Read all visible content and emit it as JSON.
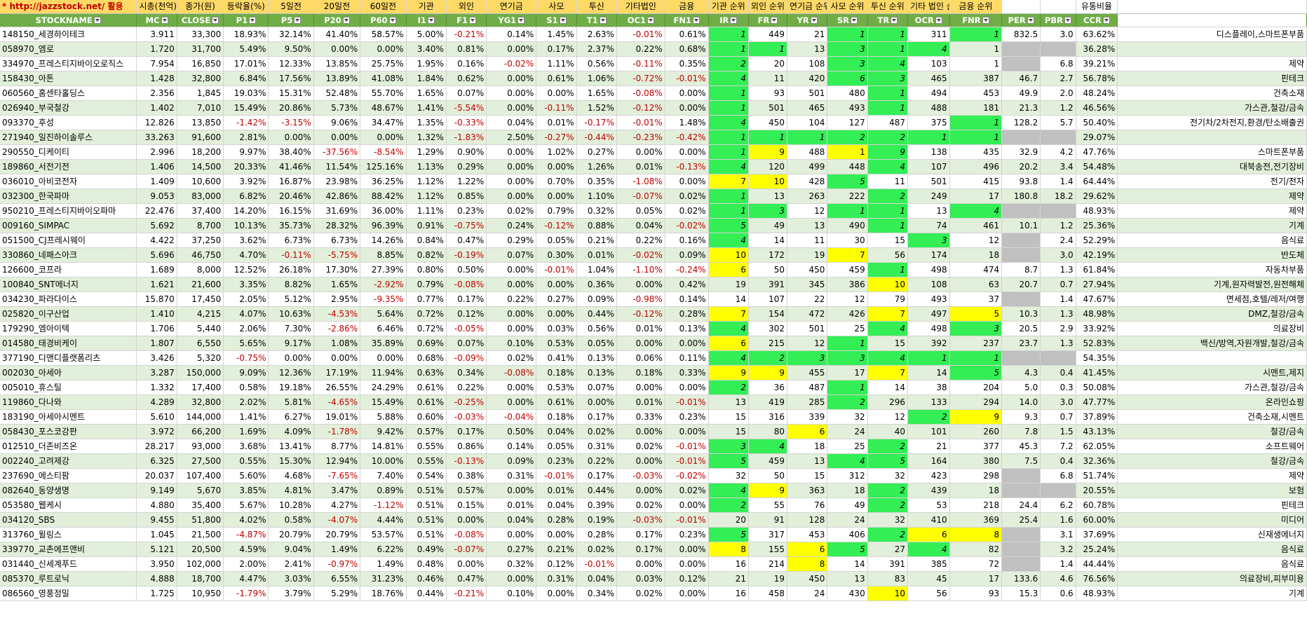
{
  "title_row": [
    "* http://jazzstock.net/ 활용",
    "시총(천억)",
    "종가(원)",
    "등락율(%)",
    "5일전",
    "20일전",
    "60일전",
    "기관",
    "외인",
    "연기금",
    "사모",
    "투신",
    "기타법인",
    "금융",
    "기관 순위",
    "외인 순위",
    "연기금 순위",
    "사모 순위",
    "투신 순위",
    "기타 법인 순위",
    "금융 순위",
    "",
    "",
    "유통비율",
    ""
  ],
  "headers": [
    "STOCKNAME",
    "MC",
    "CLOSE",
    "P1",
    "P5",
    "P20",
    "P60",
    "I1",
    "F1",
    "YG1",
    "S1",
    "T1",
    "OC1",
    "FN1",
    "IR",
    "FR",
    "YR",
    "SR",
    "TR",
    "OCR",
    "FNR",
    "PER",
    "PBR",
    "CCR",
    ""
  ],
  "rows": [
    [
      "148150_세경하이테크",
      "3.911",
      "33,300",
      "18.93%",
      "32.14%",
      "41.40%",
      "58.57%",
      "5.00%",
      "-0.21%",
      "0.14%",
      "1.45%",
      "2.63%",
      "-0.01%",
      "0.61%",
      "1",
      "449",
      "21",
      "1",
      "1",
      "311",
      "1",
      "832.5",
      "3.0",
      "63.62%",
      "디스플레이,스마트폰부품"
    ],
    [
      "058970_엠로",
      "1.720",
      "31,700",
      "5.49%",
      "9.50%",
      "0.00%",
      "0.00%",
      "3.40%",
      "0.81%",
      "0.00%",
      "0.17%",
      "2.37%",
      "0.22%",
      "0.68%",
      "1",
      "1",
      "13",
      "3",
      "1",
      "4",
      "1",
      "",
      "",
      "36.28%",
      ""
    ],
    [
      "334970_프레스티지바이오로직스",
      "7.954",
      "16,850",
      "17.01%",
      "12.33%",
      "13.85%",
      "25.75%",
      "1.95%",
      "0.16%",
      "-0.02%",
      "1.11%",
      "0.56%",
      "-0.11%",
      "0.35%",
      "2",
      "20",
      "108",
      "3",
      "4",
      "103",
      "1",
      "",
      "6.8",
      "39.21%",
      "제약"
    ],
    [
      "158430_아톤",
      "1.428",
      "32,800",
      "6.84%",
      "17.56%",
      "13.89%",
      "41.08%",
      "1.84%",
      "0.62%",
      "0.00%",
      "0.61%",
      "1.06%",
      "-0.72%",
      "-0.01%",
      "4",
      "11",
      "420",
      "6",
      "3",
      "465",
      "387",
      "46.7",
      "2.7",
      "56.78%",
      "핀테크"
    ],
    [
      "060560_홈센타홀딩스",
      "2.356",
      "1,845",
      "19.03%",
      "15.31%",
      "52.48%",
      "55.70%",
      "1.65%",
      "0.07%",
      "0.00%",
      "0.00%",
      "1.65%",
      "-0.08%",
      "0.00%",
      "1",
      "93",
      "501",
      "480",
      "1",
      "494",
      "453",
      "49.9",
      "2.0",
      "48.24%",
      "건축소재"
    ],
    [
      "026940_부국철강",
      "1.402",
      "7,010",
      "15.49%",
      "20.86%",
      "5.73%",
      "48.67%",
      "1.41%",
      "-5.54%",
      "0.00%",
      "-0.11%",
      "1.52%",
      "-0.12%",
      "0.00%",
      "1",
      "501",
      "465",
      "493",
      "1",
      "488",
      "181",
      "21.3",
      "1.2",
      "46.56%",
      "가스관,철강/금속"
    ],
    [
      "093370_후성",
      "12.826",
      "13,850",
      "-1.42%",
      "-3.15%",
      "9.06%",
      "34.47%",
      "1.35%",
      "-0.33%",
      "0.04%",
      "0.01%",
      "-0.17%",
      "-0.01%",
      "1.48%",
      "4",
      "450",
      "104",
      "127",
      "487",
      "375",
      "1",
      "128.2",
      "5.7",
      "50.40%",
      "전기차/2차전지,환경/탄소배출권"
    ],
    [
      "271940_일진하이솔루스",
      "33.263",
      "91,600",
      "2.81%",
      "0.00%",
      "0.00%",
      "0.00%",
      "1.32%",
      "-1.83%",
      "2.50%",
      "-0.27%",
      "-0.44%",
      "-0.23%",
      "-0.42%",
      "1",
      "1",
      "1",
      "2",
      "2",
      "1",
      "1",
      "",
      "",
      "29.07%",
      ""
    ],
    [
      "290550_디케이티",
      "2.996",
      "18,200",
      "9.97%",
      "38.40%",
      "-37.56%",
      "-8.54%",
      "1.29%",
      "0.90%",
      "0.00%",
      "1.02%",
      "0.27%",
      "0.00%",
      "0.00%",
      "1",
      "9",
      "488",
      "1",
      "9",
      "138",
      "435",
      "32.9",
      "4.2",
      "47.76%",
      "스마트폰부품"
    ],
    [
      "189860_서전기전",
      "1.406",
      "14,500",
      "20.33%",
      "41.46%",
      "11.54%",
      "125.16%",
      "1.13%",
      "0.29%",
      "0.00%",
      "0.00%",
      "1.26%",
      "0.01%",
      "-0.13%",
      "4",
      "120",
      "499",
      "448",
      "4",
      "107",
      "496",
      "20.2",
      "3.4",
      "54.48%",
      "대북송전,전기장비"
    ],
    [
      "036010_아비코전자",
      "1.409",
      "10,600",
      "3.92%",
      "16.87%",
      "23.98%",
      "36.25%",
      "1.12%",
      "1.22%",
      "0.00%",
      "0.70%",
      "0.35%",
      "-1.08%",
      "0.00%",
      "7",
      "10",
      "428",
      "5",
      "11",
      "501",
      "415",
      "93.8",
      "1.4",
      "64.44%",
      "전기/전자"
    ],
    [
      "032300_한국파마",
      "9.053",
      "83,000",
      "6.82%",
      "20.46%",
      "42.86%",
      "88.42%",
      "1.12%",
      "0.85%",
      "0.00%",
      "0.00%",
      "1.10%",
      "-0.07%",
      "0.02%",
      "1",
      "13",
      "263",
      "222",
      "2",
      "249",
      "17",
      "180.8",
      "18.2",
      "29.62%",
      "제약"
    ],
    [
      "950210_프레스티지바이오파마",
      "22.476",
      "37,400",
      "14.20%",
      "16.15%",
      "31.69%",
      "36.00%",
      "1.11%",
      "0.23%",
      "0.02%",
      "0.79%",
      "0.32%",
      "0.05%",
      "0.02%",
      "1",
      "3",
      "12",
      "1",
      "1",
      "13",
      "4",
      "",
      "",
      "48.93%",
      "제약"
    ],
    [
      "009160_SIMPAC",
      "5.692",
      "8,700",
      "10.13%",
      "35.73%",
      "28.32%",
      "96.39%",
      "0.91%",
      "-0.75%",
      "0.24%",
      "-0.12%",
      "0.88%",
      "0.04%",
      "-0.02%",
      "5",
      "49",
      "13",
      "490",
      "1",
      "74",
      "461",
      "10.1",
      "1.2",
      "25.36%",
      "기계"
    ],
    [
      "051500_CJ프레시웨이",
      "4.422",
      "37,250",
      "3.62%",
      "6.73%",
      "6.73%",
      "14.26%",
      "0.84%",
      "0.47%",
      "0.29%",
      "0.05%",
      "0.21%",
      "0.22%",
      "0.16%",
      "4",
      "14",
      "11",
      "30",
      "15",
      "3",
      "12",
      "",
      "2.4",
      "52.29%",
      "음식료"
    ],
    [
      "330860_네패스아크",
      "5.696",
      "46,750",
      "4.70%",
      "-0.11%",
      "-5.75%",
      "8.85%",
      "0.82%",
      "-0.19%",
      "0.07%",
      "0.30%",
      "0.01%",
      "-0.02%",
      "0.09%",
      "10",
      "172",
      "19",
      "7",
      "56",
      "174",
      "18",
      "",
      "3.0",
      "42.19%",
      "반도체"
    ],
    [
      "126600_코프라",
      "1.689",
      "8,000",
      "12.52%",
      "26.18%",
      "17.30%",
      "27.39%",
      "0.80%",
      "0.50%",
      "0.00%",
      "-0.01%",
      "1.04%",
      "-1.10%",
      "-0.24%",
      "6",
      "50",
      "450",
      "459",
      "1",
      "498",
      "474",
      "8.7",
      "1.3",
      "61.84%",
      "자동차부품"
    ],
    [
      "100840_SNT에너지",
      "1.621",
      "21,600",
      "3.35%",
      "8.82%",
      "1.65%",
      "-2.92%",
      "0.79%",
      "-0.08%",
      "0.00%",
      "0.00%",
      "0.36%",
      "0.00%",
      "0.42%",
      "19",
      "391",
      "345",
      "386",
      "10",
      "108",
      "63",
      "20.7",
      "0.7",
      "27.94%",
      "기계,원자력발전,원전해체"
    ],
    [
      "034230_파라다이스",
      "15.870",
      "17,450",
      "2.05%",
      "5.12%",
      "2.95%",
      "-9.35%",
      "0.77%",
      "0.17%",
      "0.22%",
      "0.27%",
      "0.09%",
      "-0.98%",
      "0.14%",
      "14",
      "107",
      "22",
      "12",
      "79",
      "493",
      "37",
      "",
      "1.4",
      "47.67%",
      "면세점,호텔/레저/여행"
    ],
    [
      "025820_이구산업",
      "1.410",
      "4,215",
      "4.07%",
      "10.63%",
      "-4.53%",
      "5.64%",
      "0.72%",
      "0.12%",
      "0.00%",
      "0.00%",
      "0.44%",
      "-0.12%",
      "0.28%",
      "7",
      "154",
      "472",
      "426",
      "7",
      "497",
      "5",
      "10.3",
      "1.3",
      "48.98%",
      "DMZ,철강/금속"
    ],
    [
      "179290_엠아이텍",
      "1.706",
      "5,440",
      "2.06%",
      "7.30%",
      "-2.86%",
      "6.46%",
      "0.72%",
      "-0.05%",
      "0.00%",
      "0.03%",
      "0.56%",
      "0.01%",
      "0.13%",
      "4",
      "302",
      "501",
      "25",
      "4",
      "498",
      "3",
      "20.5",
      "2.9",
      "33.92%",
      "의료장비"
    ],
    [
      "014580_태경비케이",
      "1.807",
      "6,550",
      "5.65%",
      "9.17%",
      "1.08%",
      "35.89%",
      "0.69%",
      "0.07%",
      "0.10%",
      "0.53%",
      "0.05%",
      "0.00%",
      "0.00%",
      "6",
      "215",
      "12",
      "1",
      "15",
      "392",
      "237",
      "23.7",
      "1.3",
      "52.83%",
      "백신/방역,자원개발,철강/금속"
    ],
    [
      "377190_디앤디플랫폼리츠",
      "3.426",
      "5,320",
      "-0.75%",
      "0.00%",
      "0.00%",
      "0.00%",
      "0.68%",
      "-0.09%",
      "0.02%",
      "0.41%",
      "0.13%",
      "0.06%",
      "0.11%",
      "4",
      "2",
      "3",
      "3",
      "4",
      "1",
      "1",
      "",
      "",
      "54.35%",
      ""
    ],
    [
      "002030_아세아",
      "3.287",
      "150,000",
      "9.09%",
      "12.36%",
      "17.19%",
      "11.94%",
      "0.63%",
      "0.34%",
      "-0.08%",
      "0.18%",
      "0.13%",
      "0.18%",
      "0.33%",
      "9",
      "9",
      "455",
      "17",
      "7",
      "14",
      "5",
      "4.3",
      "0.4",
      "41.45%",
      "시멘트,제지"
    ],
    [
      "005010_휴스틸",
      "1.332",
      "17,400",
      "0.58%",
      "19.18%",
      "26.55%",
      "24.29%",
      "0.61%",
      "0.22%",
      "0.00%",
      "0.53%",
      "0.07%",
      "0.00%",
      "0.00%",
      "2",
      "36",
      "487",
      "1",
      "14",
      "38",
      "204",
      "5.0",
      "0.3",
      "50.08%",
      "가스관,철강/금속"
    ],
    [
      "119860_다나와",
      "4.289",
      "32,800",
      "2.02%",
      "5.81%",
      "-4.65%",
      "15.49%",
      "0.61%",
      "-0.25%",
      "0.00%",
      "0.61%",
      "0.00%",
      "0.01%",
      "-0.01%",
      "13",
      "419",
      "285",
      "2",
      "296",
      "133",
      "294",
      "14.0",
      "3.0",
      "47.77%",
      "온라인쇼핑"
    ],
    [
      "183190_아세아시멘트",
      "5.610",
      "144,000",
      "1.41%",
      "6.27%",
      "19.01%",
      "5.88%",
      "0.60%",
      "-0.03%",
      "-0.04%",
      "0.18%",
      "0.17%",
      "0.33%",
      "0.23%",
      "15",
      "316",
      "339",
      "32",
      "12",
      "2",
      "9",
      "9.3",
      "0.7",
      "37.89%",
      "건축소재,시멘트"
    ],
    [
      "058430_포스코강판",
      "3.972",
      "66,200",
      "1.69%",
      "4.09%",
      "-1.78%",
      "9.42%",
      "0.57%",
      "0.17%",
      "0.50%",
      "0.04%",
      "0.02%",
      "0.00%",
      "0.00%",
      "15",
      "80",
      "6",
      "24",
      "40",
      "101",
      "260",
      "7.8",
      "1.5",
      "43.13%",
      "철강/금속"
    ],
    [
      "012510_더존비즈온",
      "28.217",
      "93,000",
      "3.68%",
      "13.41%",
      "8.77%",
      "14.81%",
      "0.55%",
      "0.86%",
      "0.14%",
      "0.05%",
      "0.31%",
      "0.02%",
      "-0.01%",
      "3",
      "4",
      "18",
      "25",
      "2",
      "21",
      "377",
      "45.3",
      "7.2",
      "62.05%",
      "소프트웨어"
    ],
    [
      "002240_고려제강",
      "6.325",
      "27,500",
      "0.55%",
      "15.30%",
      "12.94%",
      "10.00%",
      "0.55%",
      "-0.13%",
      "0.09%",
      "0.23%",
      "0.22%",
      "0.00%",
      "-0.01%",
      "5",
      "459",
      "13",
      "4",
      "5",
      "164",
      "380",
      "7.5",
      "0.4",
      "32.36%",
      "철강/금속"
    ],
    [
      "237690_에스티팜",
      "20.037",
      "107,400",
      "5.60%",
      "4.68%",
      "-7.65%",
      "7.40%",
      "0.54%",
      "0.38%",
      "0.31%",
      "-0.01%",
      "0.17%",
      "-0.03%",
      "-0.02%",
      "32",
      "50",
      "15",
      "312",
      "32",
      "423",
      "298",
      "",
      "6.8",
      "51.74%",
      "제약"
    ],
    [
      "082640_동양생명",
      "9.149",
      "5,670",
      "3.85%",
      "4.81%",
      "3.47%",
      "0.89%",
      "0.51%",
      "0.57%",
      "0.00%",
      "0.01%",
      "0.44%",
      "0.00%",
      "0.02%",
      "4",
      "9",
      "363",
      "18",
      "2",
      "439",
      "18",
      "",
      "",
      "20.55%",
      "보험"
    ],
    [
      "053580_웹케시",
      "4.880",
      "35,400",
      "5.67%",
      "10.28%",
      "4.27%",
      "-1.12%",
      "0.51%",
      "0.15%",
      "0.01%",
      "0.04%",
      "0.39%",
      "0.02%",
      "0.00%",
      "2",
      "55",
      "76",
      "49",
      "2",
      "53",
      "218",
      "24.4",
      "6.2",
      "60.78%",
      "핀테크"
    ],
    [
      "034120_SBS",
      "9.455",
      "51,800",
      "4.02%",
      "0.58%",
      "-4.07%",
      "4.44%",
      "0.51%",
      "0.00%",
      "0.04%",
      "0.28%",
      "0.19%",
      "-0.03%",
      "-0.01%",
      "20",
      "91",
      "128",
      "24",
      "32",
      "410",
      "369",
      "25.4",
      "1.6",
      "60.00%",
      "미디어"
    ],
    [
      "313760_윌링스",
      "1.045",
      "21,500",
      "-4.87%",
      "20.79%",
      "20.79%",
      "53.57%",
      "0.51%",
      "-0.08%",
      "0.00%",
      "0.00%",
      "0.28%",
      "0.17%",
      "0.23%",
      "5",
      "317",
      "453",
      "406",
      "2",
      "6",
      "8",
      "",
      "3.1",
      "37.69%",
      "신재생에너지"
    ],
    [
      "339770_교촌에프앤비",
      "5.121",
      "20,500",
      "4.59%",
      "9.04%",
      "1.49%",
      "6.22%",
      "0.49%",
      "-0.07%",
      "0.27%",
      "0.21%",
      "0.02%",
      "0.17%",
      "0.00%",
      "8",
      "155",
      "6",
      "5",
      "27",
      "4",
      "82",
      "",
      "3.2",
      "25.24%",
      "음식료"
    ],
    [
      "031440_신세계푸드",
      "3.950",
      "102,000",
      "2.00%",
      "2.41%",
      "-0.97%",
      "1.49%",
      "0.48%",
      "0.00%",
      "0.32%",
      "0.12%",
      "-0.01%",
      "0.00%",
      "0.00%",
      "16",
      "214",
      "8",
      "14",
      "391",
      "385",
      "72",
      "",
      "1.4",
      "44.44%",
      "음식료"
    ],
    [
      "085370_루트로닉",
      "4.888",
      "18,700",
      "4.47%",
      "3.03%",
      "6.55%",
      "31.23%",
      "0.46%",
      "0.47%",
      "0.00%",
      "0.31%",
      "0.04%",
      "0.03%",
      "0.12%",
      "21",
      "19",
      "450",
      "13",
      "83",
      "45",
      "17",
      "133.6",
      "4.6",
      "76.56%",
      "의료장비,피부미용"
    ],
    [
      "086560_영풍정밀",
      "1.725",
      "10,950",
      "-1.79%",
      "3.79%",
      "5.29%",
      "18.76%",
      "0.44%",
      "-0.21%",
      "0.10%",
      "0.00%",
      "0.34%",
      "0.02%",
      "0.00%",
      "16",
      "458",
      "24",
      "430",
      "10",
      "56",
      "93",
      "15.3",
      "0.6",
      "48.93%",
      "기계"
    ]
  ],
  "highlights": [
    "GGGGGGG",
    "GGGGGG",
    "GGGGGG",
    "GGYGGGG",
    "GGGGGGG",
    "GGGGGGG",
    "GGGGGGG",
    "GGGGGGG",
    "GYGYGGG",
    "GGGGGGG",
    "YYGGGGG",
    "GGGGGGG",
    "GGGGGGG",
    "GGGGGGG",
    "GGGGGGG",
    "YGGYGGG",
    "YGGGGGG",
    "GGGGYGG",
    "GGGGGGG",
    "YGGGYGY",
    "GGGGGGG",
    "YGGGGGG",
    "GGGGGGG",
    "YYGGYGG",
    "GGGGGGG",
    "GGGGGGG",
    "GGGGGGY",
    "GGYGGGG",
    "GGGGGGG",
    "GGGGGGG",
    "GGGGGGG",
    "GYGGGGG",
    "GGGGGGG",
    "GGGGGGG",
    "GGGGGYY",
    "YGYGGGG",
    "GGYGGGG",
    "GGGGGGG",
    "GGGGYGG"
  ],
  "colors": {
    "title_bg": "#ffd966",
    "header_bg": "#70ad47",
    "band_bg": "#e2efda",
    "rank_green": "#33ee55",
    "rank_yellow": "#ffff00",
    "gray": "#c0c0c0",
    "negative": "#c00000"
  }
}
